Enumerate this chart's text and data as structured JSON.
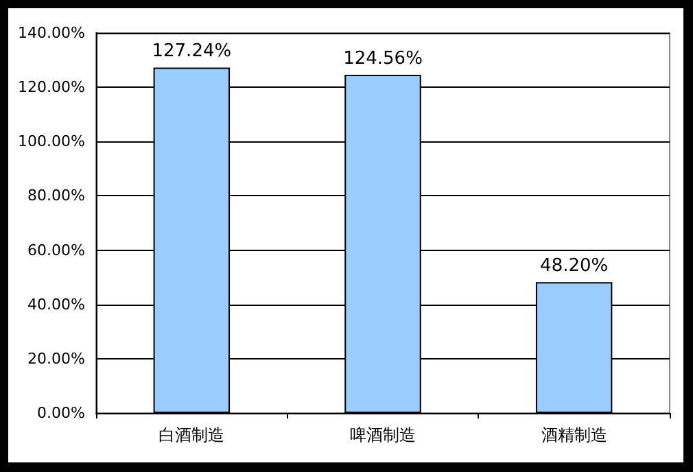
{
  "chart_data": {
    "type": "bar",
    "categories": [
      "白酒制造",
      "啤酒制造",
      "酒精制造"
    ],
    "values": [
      127.24,
      124.56,
      48.2
    ],
    "color": "#99ccff",
    "value_labels": [
      "127.24%",
      "124.56%",
      "48.20%"
    ],
    "ylim": [
      0,
      140
    ],
    "yticks": [
      {
        "value": 0,
        "label": "0.00%"
      },
      {
        "value": 20,
        "label": "20.00%"
      },
      {
        "value": 40,
        "label": "40.00%"
      },
      {
        "value": 60,
        "label": "60.00%"
      },
      {
        "value": 80,
        "label": "80.00%"
      },
      {
        "value": 100,
        "label": "100.00%"
      },
      {
        "value": 120,
        "label": "120.00%"
      },
      {
        "value": 140,
        "label": "140.00%"
      }
    ],
    "grid": "y"
  }
}
